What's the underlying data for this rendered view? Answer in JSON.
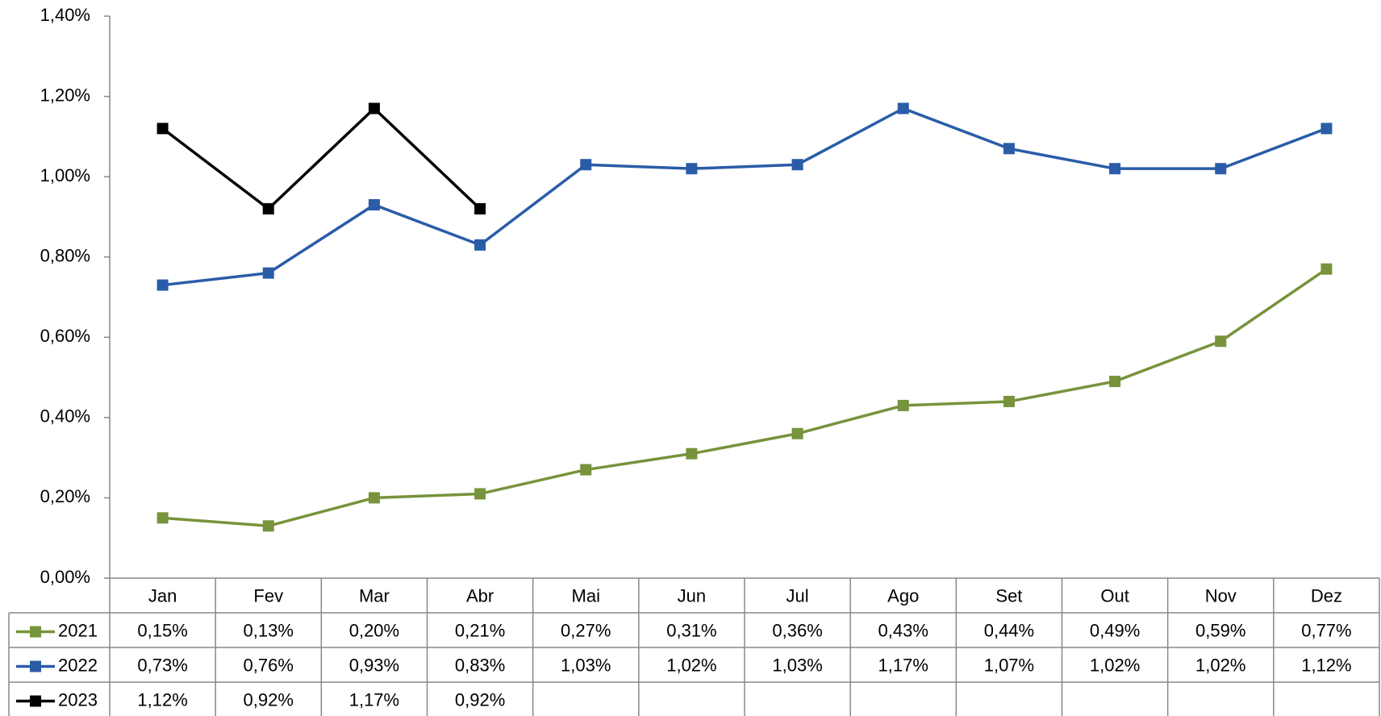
{
  "chart_data": {
    "type": "line",
    "categories": [
      "Jan",
      "Fev",
      "Mar",
      "Abr",
      "Mai",
      "Jun",
      "Jul",
      "Ago",
      "Set",
      "Out",
      "Nov",
      "Dez"
    ],
    "series": [
      {
        "name": "2021",
        "color": "#77933c",
        "values": [
          0.15,
          0.13,
          0.2,
          0.21,
          0.27,
          0.31,
          0.36,
          0.43,
          0.44,
          0.49,
          0.59,
          0.77
        ],
        "value_labels": [
          "0,15%",
          "0,13%",
          "0,20%",
          "0,21%",
          "0,27%",
          "0,31%",
          "0,36%",
          "0,43%",
          "0,44%",
          "0,49%",
          "0,59%",
          "0,77%"
        ]
      },
      {
        "name": "2022",
        "color": "#2a5ca8",
        "values": [
          0.73,
          0.76,
          0.93,
          0.83,
          1.03,
          1.02,
          1.03,
          1.17,
          1.07,
          1.02,
          1.02,
          1.12
        ],
        "value_labels": [
          "0,73%",
          "0,76%",
          "0,93%",
          "0,83%",
          "1,03%",
          "1,02%",
          "1,03%",
          "1,17%",
          "1,07%",
          "1,02%",
          "1,02%",
          "1,12%"
        ]
      },
      {
        "name": "2023",
        "color": "#000000",
        "values": [
          1.12,
          0.92,
          1.17,
          0.92,
          null,
          null,
          null,
          null,
          null,
          null,
          null,
          null
        ],
        "value_labels": [
          "1,12%",
          "0,92%",
          "1,17%",
          "0,92%",
          null,
          null,
          null,
          null,
          null,
          null,
          null,
          null
        ]
      }
    ],
    "ylim": [
      0,
      1.4
    ],
    "yticks": [
      {
        "value": 0,
        "label": "0,00%"
      },
      {
        "value": 0.2,
        "label": "0,20%"
      },
      {
        "value": 0.4,
        "label": "0,40%"
      },
      {
        "value": 0.6,
        "label": "0,60%"
      },
      {
        "value": 0.8,
        "label": "0,80%"
      },
      {
        "value": 1.0,
        "label": "1,00%"
      },
      {
        "value": 1.2,
        "label": "1,20%"
      },
      {
        "value": 1.4,
        "label": "1,40%"
      }
    ],
    "grid": false,
    "data_table": true
  }
}
